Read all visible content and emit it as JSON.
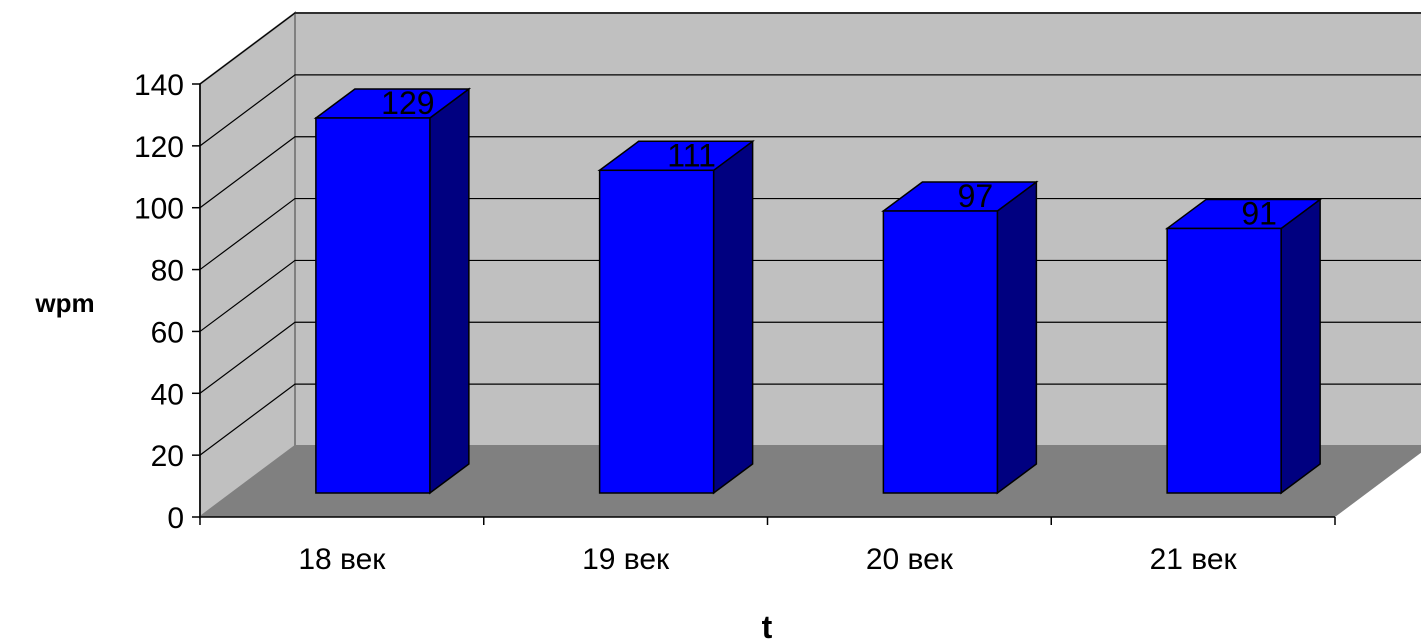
{
  "chart_data": {
    "type": "bar",
    "style": "3d-column",
    "categories": [
      "18 век",
      "19 век",
      "20 век",
      "21 век"
    ],
    "values": [
      129,
      111,
      97,
      91
    ],
    "xlabel": "t",
    "ylabel": "wpm",
    "ylim": [
      0,
      140
    ],
    "yticks": [
      0,
      20,
      40,
      60,
      80,
      100,
      120,
      140
    ],
    "grid": true,
    "legend": "none",
    "colors": {
      "bar_front": "#0000ff",
      "bar_side": "#000080",
      "back_wall": "#c0c0c0",
      "floor": "#808080",
      "grid": "#000000"
    }
  }
}
